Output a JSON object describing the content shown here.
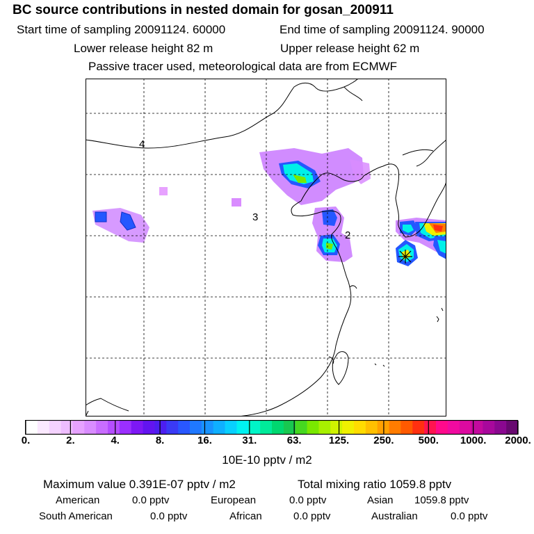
{
  "header": {
    "title": "BC  source contributions in nested domain for gosan_200911",
    "start_time": "Start time of sampling 20091124. 60000",
    "end_time": "End time of sampling 20091124. 90000",
    "lower_release": "Lower release height   82 m",
    "upper_release": "Upper release height   62 m",
    "tracer_note": "Passive tracer used, meteorological data are from ECMWF"
  },
  "map": {
    "region_labels": [
      "4",
      "3",
      "2"
    ],
    "receptor": "gosan"
  },
  "colorbar": {
    "tick_labels": [
      "0.",
      "2.",
      "4.",
      "8.",
      "16.",
      "31.",
      "63.",
      "125.",
      "250.",
      "500.",
      "1000.",
      "2000."
    ],
    "colors": [
      "#ffffff",
      "#fbe9ff",
      "#f5d3ff",
      "#eebdff",
      "#e6a2ff",
      "#d98cff",
      "#c96dff",
      "#b54eff",
      "#9b2fff",
      "#7d18f5",
      "#6214f0",
      "#4c1ef0",
      "#3a3af5",
      "#2957ff",
      "#1f78ff",
      "#1893ff",
      "#0fb0ff",
      "#08d0ff",
      "#00f2f2",
      "#00f5c8",
      "#00ea9a",
      "#00d870",
      "#18c850",
      "#46d820",
      "#7ae800",
      "#a8f000",
      "#cff200",
      "#f0f000",
      "#ffdc00",
      "#ffc000",
      "#ffa000",
      "#ff7c00",
      "#ff5a00",
      "#ff3010",
      "#ff1450",
      "#ff0a8c",
      "#f00aa0",
      "#dc0aa0",
      "#c30a9e",
      "#a8089c",
      "#8a0890",
      "#680870"
    ],
    "unit": "10E-10 pptv / m2"
  },
  "stats": {
    "max_value": "Maximum value  0.391E-07 pptv / m2",
    "total": "Total mixing ratio      1059.8 pptv"
  },
  "contributions": [
    {
      "label": "American",
      "value": "0.0 pptv"
    },
    {
      "label": "European",
      "value": "0.0 pptv"
    },
    {
      "label": "Asian",
      "value": "1059.8 pptv"
    },
    {
      "label": "South American",
      "value": "0.0 pptv"
    },
    {
      "label": "African",
      "value": "0.0 pptv"
    },
    {
      "label": "Australian",
      "value": "0.0 pptv"
    }
  ]
}
